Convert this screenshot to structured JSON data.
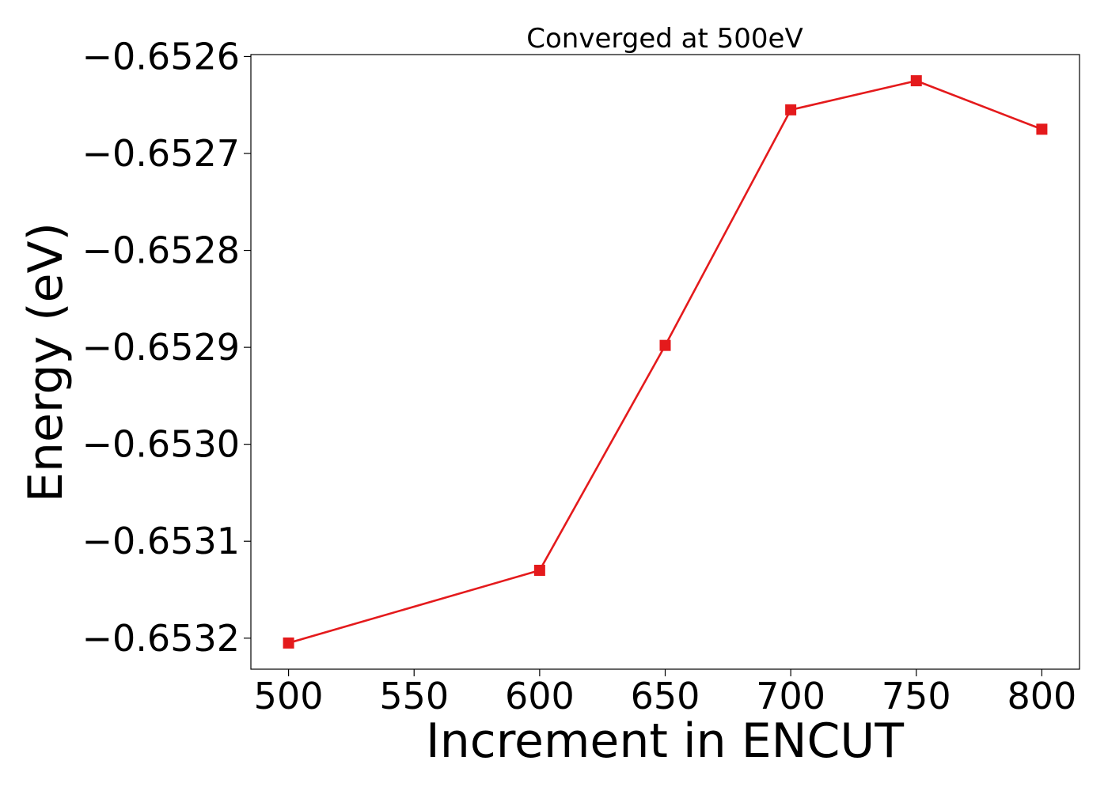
{
  "chart_data": {
    "type": "line",
    "title": "Converged at 500eV",
    "xlabel": "Increment in ENCUT",
    "ylabel": "Energy (eV)",
    "x": [
      500,
      600,
      650,
      700,
      750,
      800
    ],
    "series": [
      {
        "values": [
          -0.653205,
          -0.65313,
          -0.652898,
          -0.652655,
          -0.652625,
          -0.652675
        ],
        "color": "#e41a1c",
        "marker": "square"
      }
    ],
    "xlim": [
      485,
      815
    ],
    "ylim": [
      -0.653232,
      -0.652598
    ],
    "xticks": [
      500,
      550,
      600,
      650,
      700,
      750,
      800
    ],
    "xtick_labels": [
      "500",
      "550",
      "600",
      "650",
      "700",
      "750",
      "800"
    ],
    "yticks": [
      -0.6532,
      -0.6531,
      -0.653,
      -0.6529,
      -0.6528,
      -0.6527,
      -0.6526
    ],
    "ytick_labels": [
      "−0.6532",
      "−0.6531",
      "−0.6530",
      "−0.6529",
      "−0.6528",
      "−0.6527",
      "−0.6526"
    ],
    "grid": false,
    "legend": "none"
  }
}
